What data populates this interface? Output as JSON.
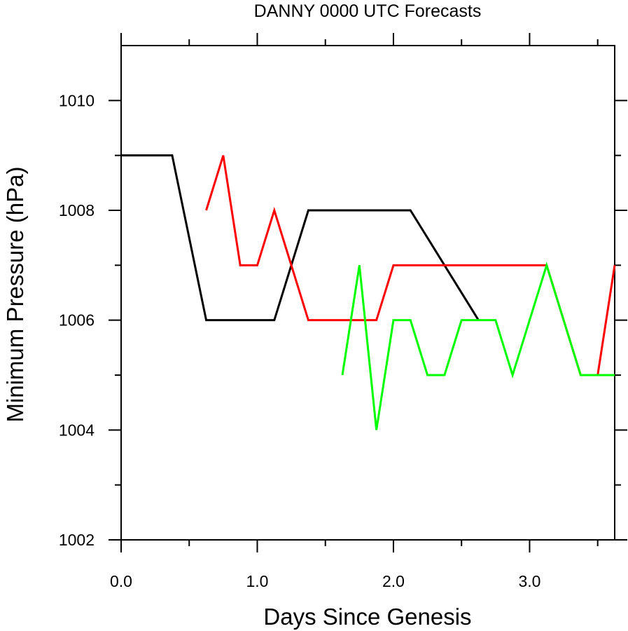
{
  "chart_data": {
    "type": "line",
    "title": "DANNY 0000 UTC Forecasts",
    "xlabel": "Days Since Genesis",
    "ylabel": "Minimum Pressure (hPa)",
    "xlim": [
      0,
      3.625
    ],
    "ylim": [
      1002,
      1011
    ],
    "x_ticks": [
      0,
      1,
      2,
      3
    ],
    "x_tick_labels": [
      "0.0",
      "1.0",
      "2.0",
      "3.0"
    ],
    "y_ticks": [
      1002,
      1004,
      1006,
      1008,
      1010
    ],
    "y_tick_labels": [
      "1002",
      "1004",
      "1006",
      "1008",
      "1010"
    ],
    "x_minor_ticks": [
      0.5,
      1.5,
      2.5,
      3.5
    ],
    "grid": false,
    "legend": "none",
    "series": [
      {
        "color": "#000000",
        "x": [
          0,
          0.375,
          0.625,
          1.125,
          1.375,
          2.125,
          2.625
        ],
        "y": [
          1009,
          1009,
          1006,
          1006,
          1008,
          1008,
          1006
        ]
      },
      {
        "color": "#ff0000",
        "x": [
          0.625,
          0.75,
          0.875,
          1.0,
          1.125,
          1.375,
          1.875,
          2.0,
          3.125,
          3.375,
          3.5,
          3.625
        ],
        "y": [
          1008,
          1009,
          1007,
          1007,
          1008,
          1006,
          1006,
          1007,
          1007,
          1005,
          1005,
          1007
        ]
      },
      {
        "color": "#00ff00",
        "x": [
          1.625,
          1.75,
          1.875,
          2.0,
          2.125,
          2.25,
          2.375,
          2.5,
          2.75,
          2.875,
          3.125,
          3.375,
          3.625
        ],
        "y": [
          1005,
          1007,
          1004,
          1006,
          1006,
          1005,
          1005,
          1006,
          1006,
          1005,
          1007,
          1005,
          1005
        ]
      }
    ]
  }
}
